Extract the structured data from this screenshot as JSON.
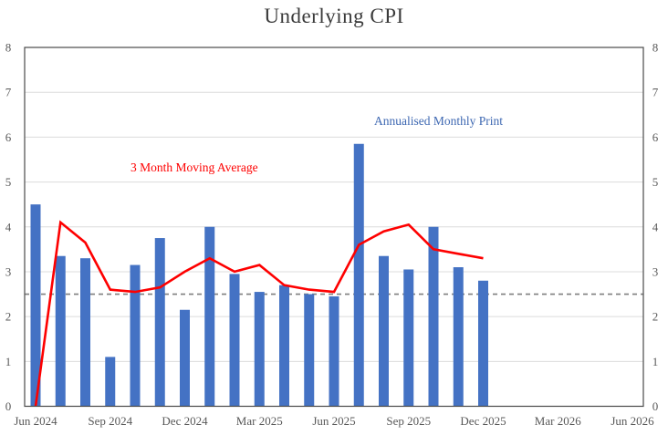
{
  "title": "Underlying CPI",
  "annotations": {
    "ma_label": {
      "text": "3 Month Moving Average",
      "color": "#fe0000"
    },
    "bar_label": {
      "text": "Annualised Monthly Print",
      "color": "#3e68b2"
    }
  },
  "chart_data": {
    "type": "bar",
    "title": "Underlying CPI",
    "categories": [
      "Jun 2024",
      "Jul 2024",
      "Aug 2024",
      "Sep 2024",
      "Oct 2024",
      "Nov 2024",
      "Dec 2024",
      "Jan 2025",
      "Feb 2025",
      "Mar 2025",
      "Apr 2025",
      "May 2025",
      "Jun 2025",
      "Jul 2025",
      "Aug 2025",
      "Sep 2025",
      "Oct 2025",
      "Nov 2025",
      "Dec 2025"
    ],
    "series": [
      {
        "name": "Annualised Monthly Print",
        "type": "bar",
        "color": "#4472C4",
        "values": [
          4.5,
          3.35,
          3.3,
          1.1,
          3.15,
          3.75,
          2.15,
          4.0,
          2.95,
          2.55,
          2.7,
          2.5,
          2.45,
          5.85,
          3.35,
          3.05,
          4.0,
          3.1,
          2.8
        ]
      },
      {
        "name": "3 Month Moving Average",
        "type": "line",
        "color": "#fe0000",
        "values": [
          0,
          4.1,
          3.65,
          2.6,
          2.55,
          2.65,
          3.0,
          3.3,
          3.0,
          3.15,
          2.7,
          2.6,
          2.55,
          3.6,
          3.9,
          4.05,
          3.5,
          3.4,
          3.3
        ]
      }
    ],
    "reference_line": {
      "value": 2.5,
      "style": "dashed",
      "color": "#7f7f7f"
    },
    "x_axis": {
      "tick_labels": [
        "Jun 2024",
        "Sep 2024",
        "Dec 2024",
        "Mar 2025",
        "Jun 2025",
        "Sep 2025",
        "Dec 2025",
        "Mar 2026",
        "Jun 2026"
      ],
      "tick_months": [
        0,
        3,
        6,
        9,
        12,
        15,
        18,
        21,
        24
      ],
      "range_note": "axis extends to Jun 2026; data ends Dec 2025"
    },
    "y_axis": {
      "min": 0,
      "max": 8,
      "tick_interval": 1,
      "ticks": [
        "0",
        "1",
        "2",
        "3",
        "4",
        "5",
        "6",
        "7",
        "8"
      ],
      "sides": "both"
    },
    "ylim": [
      0,
      8
    ],
    "grid": true,
    "legend": "none",
    "colors": {
      "grid": "#dcdcdc",
      "border": "#4a4a4a",
      "axis_text": "#595959"
    }
  }
}
